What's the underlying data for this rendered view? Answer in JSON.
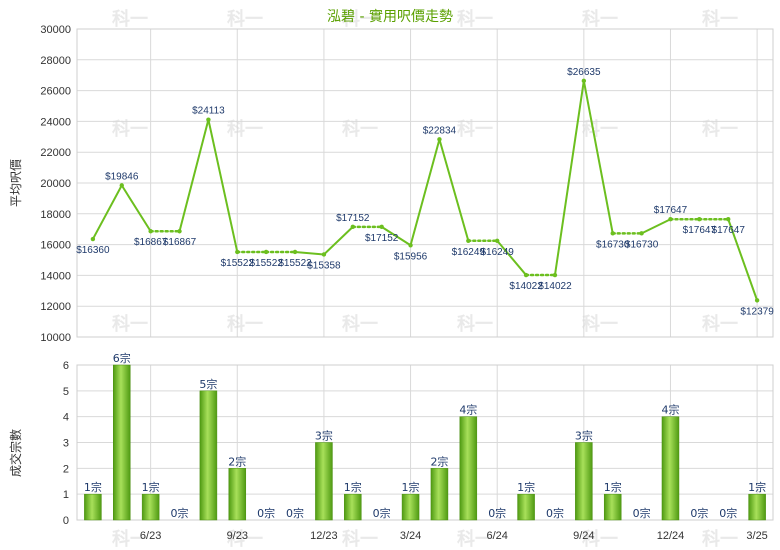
{
  "chart_data": [
    {
      "type": "line",
      "title": "泓碧 - 實用呎價走勢",
      "ylabel": "平均呎價",
      "ylim": [
        10000,
        30000
      ],
      "yticks": [
        "30000",
        "28000",
        "26000",
        "24000",
        "22000",
        "20000",
        "18000",
        "16000",
        "14000",
        "12000",
        "10000"
      ],
      "points": [
        {
          "value": 16360,
          "label": "$16360"
        },
        {
          "value": 19846,
          "label": "$19846"
        },
        {
          "value": 16867,
          "label": "$16867"
        },
        {
          "value": 16867,
          "label": "$16867"
        },
        {
          "value": 24113,
          "label": "$24113"
        },
        {
          "value": 15522,
          "label": "$15522"
        },
        {
          "value": 15522,
          "label": "$15522"
        },
        {
          "value": 15522,
          "label": "$15522"
        },
        {
          "value": 15358,
          "label": "$15358"
        },
        {
          "value": 17152,
          "label": "$17152"
        },
        {
          "value": 17152,
          "label": "$17152"
        },
        {
          "value": 15956,
          "label": "$15956"
        },
        {
          "value": 22834,
          "label": "$22834"
        },
        {
          "value": 16249,
          "label": "$16249"
        },
        {
          "value": 16249,
          "label": "$16249"
        },
        {
          "value": 14022,
          "label": "$14022"
        },
        {
          "value": 14022,
          "label": "$14022"
        },
        {
          "value": 26635,
          "label": "$26635"
        },
        {
          "value": 16730,
          "label": "$16730"
        },
        {
          "value": 16730,
          "label": "$16730"
        },
        {
          "value": 17647,
          "label": "$17647"
        },
        {
          "value": 17647,
          "label": "$17647"
        },
        {
          "value": 17647,
          "label": "$17647"
        },
        {
          "value": 12379,
          "label": "$12379"
        }
      ],
      "carried_forward_points": [
        3,
        6,
        7,
        10,
        14,
        16,
        19,
        21,
        22
      ]
    },
    {
      "type": "bar",
      "ylabel": "成交宗數",
      "ylim": [
        0,
        6
      ],
      "yticks": [
        "6",
        "5",
        "4",
        "3",
        "2",
        "1",
        "0"
      ],
      "values": [
        1,
        6,
        1,
        0,
        5,
        2,
        0,
        0,
        3,
        1,
        0,
        1,
        2,
        4,
        0,
        1,
        0,
        3,
        1,
        0,
        4,
        0,
        0,
        1
      ],
      "bar_labels": [
        "1宗",
        "6宗",
        "1宗",
        "0宗",
        "5宗",
        "2宗",
        "0宗",
        "0宗",
        "3宗",
        "1宗",
        "0宗",
        "1宗",
        "2宗",
        "4宗",
        "0宗",
        "1宗",
        "0宗",
        "3宗",
        "1宗",
        "0宗",
        "4宗",
        "0宗",
        "0宗",
        "1宗"
      ]
    }
  ],
  "x_axis": {
    "tick_labels": [
      "6/23",
      "9/23",
      "12/23",
      "3/24",
      "6/24",
      "9/24",
      "12/24",
      "3/25"
    ],
    "tick_positions": [
      2,
      5,
      8,
      11,
      14,
      17,
      20,
      23
    ]
  },
  "watermark": "科一",
  "colors": {
    "line": "#6cbf1f",
    "bar_light": "#a8e05a",
    "bar_dark": "#4f9a12",
    "grid": "#d9d9d9",
    "title": "#5aa000",
    "label": "#1f3a6b"
  }
}
